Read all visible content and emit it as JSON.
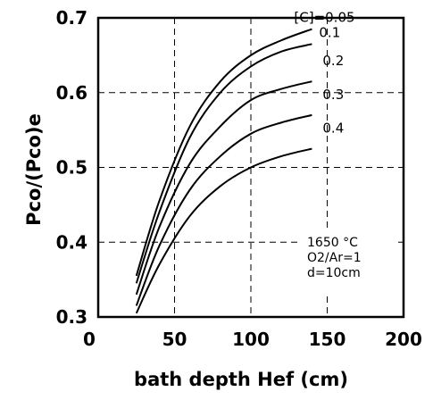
{
  "chart_data": {
    "type": "line",
    "xlabel": "bath depth  Hef   (cm)",
    "ylabel": "Pco/(Pco)e",
    "xlim": [
      0,
      200
    ],
    "ylim": [
      0.3,
      0.7
    ],
    "x_ticks": [
      "0",
      "50",
      "100",
      "150",
      "200"
    ],
    "y_ticks": [
      "0.3",
      "0.4",
      "0.5",
      "0.6",
      "0.7"
    ],
    "grid": "dashed",
    "legend_prefix": "[C]=",
    "conditions": [
      "1650 °C",
      "O2/Ar=1",
      "d=10cm"
    ],
    "series": [
      {
        "name": "0.05",
        "x": [
          25,
          40,
          60,
          80,
          100,
          120,
          140
        ],
        "y": [
          0.355,
          0.455,
          0.555,
          0.615,
          0.65,
          0.67,
          0.685
        ]
      },
      {
        "name": "0.1",
        "x": [
          25,
          40,
          60,
          80,
          100,
          120,
          140
        ],
        "y": [
          0.345,
          0.44,
          0.54,
          0.6,
          0.635,
          0.655,
          0.665
        ]
      },
      {
        "name": "0.2",
        "x": [
          25,
          40,
          60,
          80,
          100,
          120,
          140
        ],
        "y": [
          0.33,
          0.42,
          0.505,
          0.555,
          0.59,
          0.605,
          0.615
        ]
      },
      {
        "name": "0.3",
        "x": [
          25,
          40,
          60,
          80,
          100,
          120,
          140
        ],
        "y": [
          0.315,
          0.395,
          0.47,
          0.515,
          0.545,
          0.56,
          0.57
        ]
      },
      {
        "name": "0.4",
        "x": [
          25,
          40,
          60,
          80,
          100,
          120,
          140
        ],
        "y": [
          0.305,
          0.37,
          0.435,
          0.475,
          0.5,
          0.515,
          0.525
        ]
      }
    ]
  }
}
